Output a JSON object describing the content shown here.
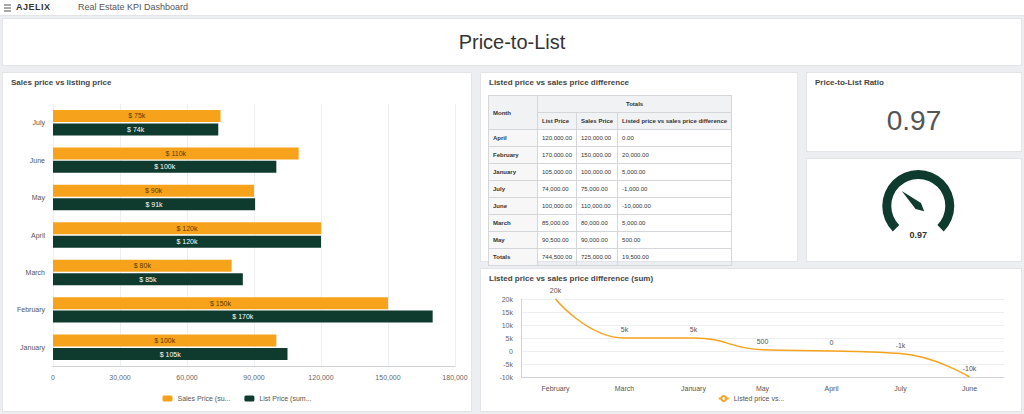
{
  "header": {
    "logo": "AJELIX",
    "title": "Real Estate KPI Dashboard"
  },
  "page_title": "Price-to-List",
  "chart_data": [
    {
      "type": "bar",
      "title": "Sales price vs listing price",
      "orientation": "horizontal",
      "categories": [
        "January",
        "February",
        "March",
        "April",
        "May",
        "June",
        "July"
      ],
      "series": [
        {
          "name": "Sales Price (su...",
          "color": "#f7a21b",
          "values": [
            100000,
            150000,
            80000,
            120000,
            90000,
            110000,
            75000
          ],
          "value_labels": [
            "$ 100k",
            "$ 150k",
            "$ 80k",
            "$ 120k",
            "$ 90k",
            "$ 110k",
            "$ 75k"
          ]
        },
        {
          "name": "List Price (sum...",
          "color": "#0e3b2e",
          "values": [
            105000,
            170000,
            85000,
            120000,
            90500,
            100000,
            74000
          ],
          "value_labels": [
            "$ 105k",
            "$ 170k",
            "$ 85k",
            "$ 120k",
            "$ 91k",
            "$ 100k",
            "$ 74k"
          ]
        }
      ],
      "xlim": [
        0,
        180000
      ],
      "xticks": [
        0,
        {
          "value": 30000,
          "label": "30,000"
        },
        {
          "value": 60000,
          "label": "60,000"
        },
        {
          "value": 90000,
          "label": "90,000"
        },
        {
          "value": 120000,
          "label": "120,000"
        },
        {
          "value": 150000,
          "label": "150,000"
        },
        {
          "value": 180000,
          "label": "180,000"
        }
      ],
      "grid": true,
      "legend": "bottom",
      "data_labels": true
    },
    {
      "type": "line",
      "title": "Listed price vs sales price difference (sum)",
      "categories": [
        "February",
        "March",
        "January",
        "May",
        "April",
        "July",
        "June"
      ],
      "series": [
        {
          "name": "Listed price vs...",
          "color": "#f7a21b",
          "marker": "emptyCircle",
          "line_style": "solid",
          "values": [
            20000,
            5000,
            5000,
            500,
            0,
            -1000,
            -10000
          ],
          "value_labels": [
            "20k",
            "5k",
            "5k",
            "500",
            "0",
            "-1k",
            "-10k"
          ]
        }
      ],
      "ylim": [
        -10000,
        20000
      ],
      "yticks": [
        {
          "value": -10000,
          "label": "-10k"
        },
        {
          "value": -5000,
          "label": "-5k"
        },
        0,
        {
          "value": 5000,
          "label": "5k"
        },
        {
          "value": 10000,
          "label": "10k"
        },
        {
          "value": 15000,
          "label": "15k"
        },
        {
          "value": 20000,
          "label": "20k"
        }
      ],
      "grid": true,
      "legend": "bottom",
      "data_labels": true
    },
    {
      "type": "gauge",
      "value": 0.97,
      "range": [
        0,
        3
      ],
      "color": "#0e3b2e",
      "data_labels": true
    }
  ],
  "table": {
    "title": "Listed price vs sales price difference",
    "group_header": "Totals",
    "columns": [
      "Month",
      "List Price",
      "Sales Price",
      "Listed price vs sales price difference"
    ],
    "rows": [
      [
        "April",
        "120,000.00",
        "120,000.00",
        "0.00"
      ],
      [
        "February",
        "170,000.00",
        "150,000.00",
        "20,000.00"
      ],
      [
        "January",
        "105,000.00",
        "100,000.00",
        "5,000.00"
      ],
      [
        "July",
        "74,000.00",
        "75,000.00",
        "-1,000.00"
      ],
      [
        "June",
        "100,000.00",
        "110,000.00",
        "-10,000.00"
      ],
      [
        "March",
        "85,000.00",
        "80,000.00",
        "5,000.00"
      ],
      [
        "May",
        "90,500.00",
        "90,000.00",
        "500.00"
      ],
      [
        "Totals",
        "744,500.00",
        "725,000.00",
        "19,500.00"
      ]
    ]
  },
  "kpi": {
    "title": "Price-to-List Ratio",
    "value": "0.97"
  }
}
